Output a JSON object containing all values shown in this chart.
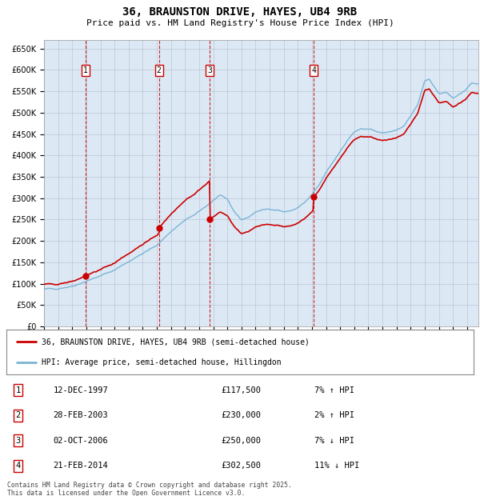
{
  "title": "36, BRAUNSTON DRIVE, HAYES, UB4 9RB",
  "subtitle": "Price paid vs. HM Land Registry's House Price Index (HPI)",
  "plot_bg_color": "#dce9f5",
  "grid_color": "#b0b8c8",
  "ylim": [
    0,
    670000
  ],
  "yticks": [
    0,
    50000,
    100000,
    150000,
    200000,
    250000,
    300000,
    350000,
    400000,
    450000,
    500000,
    550000,
    600000,
    650000
  ],
  "ytick_labels": [
    "£0",
    "£50K",
    "£100K",
    "£150K",
    "£200K",
    "£250K",
    "£300K",
    "£350K",
    "£400K",
    "£450K",
    "£500K",
    "£550K",
    "£600K",
    "£650K"
  ],
  "hpi_color": "#7ab3d4",
  "price_color": "#cc0000",
  "vline_color": "#cc0000",
  "xmin": 1995.0,
  "xmax": 2025.8,
  "transactions": [
    {
      "label": "1",
      "date_num": 1997.95,
      "price": 117500
    },
    {
      "label": "2",
      "date_num": 2003.15,
      "price": 230000
    },
    {
      "label": "3",
      "date_num": 2006.75,
      "price": 250000
    },
    {
      "label": "4",
      "date_num": 2014.13,
      "price": 302500
    }
  ],
  "legend_entries": [
    "36, BRAUNSTON DRIVE, HAYES, UB4 9RB (semi-detached house)",
    "HPI: Average price, semi-detached house, Hillingdon"
  ],
  "table_rows": [
    {
      "num": "1",
      "date": "12-DEC-1997",
      "price": "£117,500",
      "hpi": "7% ↑ HPI"
    },
    {
      "num": "2",
      "date": "28-FEB-2003",
      "price": "£230,000",
      "hpi": "2% ↑ HPI"
    },
    {
      "num": "3",
      "date": "02-OCT-2006",
      "price": "£250,000",
      "hpi": "7% ↓ HPI"
    },
    {
      "num": "4",
      "date": "21-FEB-2014",
      "price": "£302,500",
      "hpi": "11% ↓ HPI"
    }
  ],
  "footer": "Contains HM Land Registry data © Crown copyright and database right 2025.\nThis data is licensed under the Open Government Licence v3.0.",
  "hpi_waypoints_x": [
    1995.0,
    1996.0,
    1997.0,
    1998.0,
    1999.0,
    2000.0,
    2001.0,
    2002.0,
    2003.0,
    2004.0,
    2005.0,
    2006.0,
    2007.0,
    2007.5,
    2008.0,
    2008.5,
    2009.0,
    2009.5,
    2010.0,
    2010.5,
    2011.0,
    2011.5,
    2012.0,
    2012.5,
    2013.0,
    2013.5,
    2014.0,
    2014.5,
    2015.0,
    2015.5,
    2016.0,
    2016.5,
    2017.0,
    2017.5,
    2018.0,
    2018.5,
    2019.0,
    2019.5,
    2020.0,
    2020.5,
    2021.0,
    2021.5,
    2022.0,
    2022.3,
    2022.6,
    2023.0,
    2023.5,
    2024.0,
    2024.5,
    2025.3
  ],
  "hpi_waypoints_y": [
    87000,
    89000,
    94000,
    106000,
    118000,
    132000,
    152000,
    170000,
    190000,
    222000,
    248000,
    268000,
    295000,
    308000,
    295000,
    268000,
    250000,
    255000,
    268000,
    272000,
    275000,
    273000,
    268000,
    270000,
    278000,
    290000,
    308000,
    330000,
    360000,
    385000,
    410000,
    435000,
    455000,
    462000,
    460000,
    458000,
    452000,
    455000,
    460000,
    468000,
    490000,
    520000,
    575000,
    580000,
    565000,
    545000,
    548000,
    535000,
    542000,
    568000
  ]
}
